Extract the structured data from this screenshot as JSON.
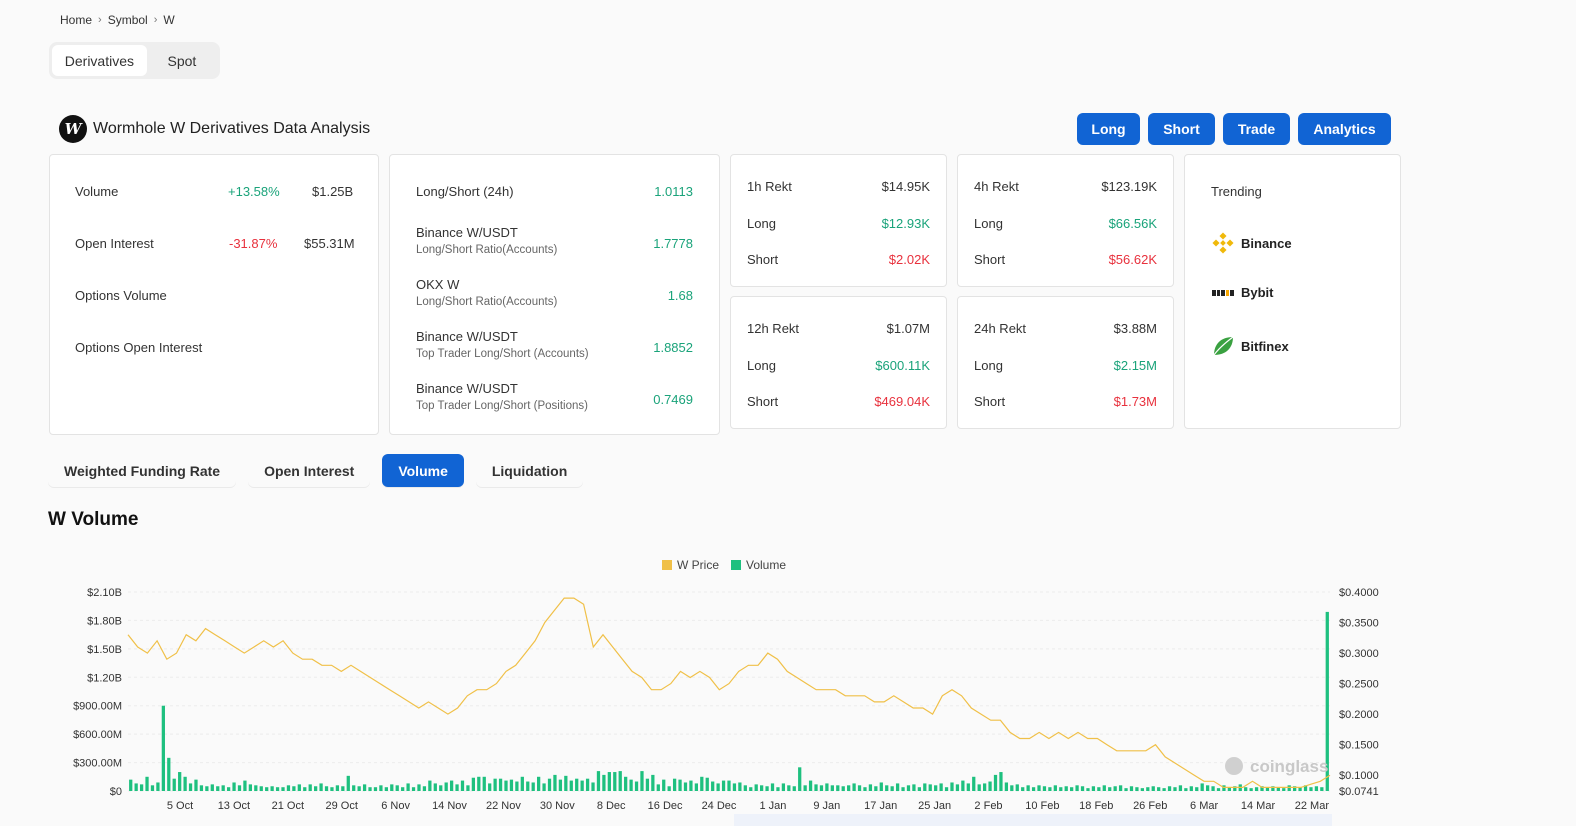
{
  "breadcrumb": [
    "Home",
    "Symbol",
    "W"
  ],
  "market_toggle": {
    "options": [
      "Derivatives",
      "Spot"
    ],
    "active": "Derivatives"
  },
  "header": {
    "logo_letter": "W",
    "title": "Wormhole W Derivatives Data Analysis"
  },
  "actions": [
    "Long",
    "Short",
    "Trade",
    "Analytics"
  ],
  "stats": {
    "volume": {
      "label": "Volume",
      "change": "+13.58%",
      "value": "$1.25B"
    },
    "open_interest": {
      "label": "Open Interest",
      "change": "-31.87%",
      "value": "$55.31M"
    },
    "options_volume": {
      "label": "Options Volume"
    },
    "options_open_interest": {
      "label": "Options Open Interest"
    }
  },
  "ratios": {
    "ls24": {
      "label": "Long/Short (24h)",
      "value": "1.0113"
    },
    "binance_accounts": {
      "label": "Binance W/USDT",
      "sub": "Long/Short Ratio(Accounts)",
      "value": "1.7778"
    },
    "okx_accounts": {
      "label": "OKX W",
      "sub": "Long/Short Ratio(Accounts)",
      "value": "1.68"
    },
    "binance_top_accounts": {
      "label": "Binance W/USDT",
      "sub": "Top Trader Long/Short (Accounts)",
      "value": "1.8852"
    },
    "binance_top_positions": {
      "label": "Binance W/USDT",
      "sub": "Top Trader Long/Short (Positions)",
      "value": "0.7469"
    }
  },
  "rekt": {
    "h1": {
      "label": "1h Rekt",
      "total": "$14.95K",
      "long_label": "Long",
      "long": "$12.93K",
      "short_label": "Short",
      "short": "$2.02K"
    },
    "h4": {
      "label": "4h Rekt",
      "total": "$123.19K",
      "long_label": "Long",
      "long": "$66.56K",
      "short_label": "Short",
      "short": "$56.62K"
    },
    "h12": {
      "label": "12h Rekt",
      "total": "$1.07M",
      "long_label": "Long",
      "long": "$600.11K",
      "short_label": "Short",
      "short": "$469.04K"
    },
    "h24": {
      "label": "24h Rekt",
      "total": "$3.88M",
      "long_label": "Long",
      "long": "$2.15M",
      "short_label": "Short",
      "short": "$1.73M"
    }
  },
  "trending": {
    "title": "Trending",
    "items": [
      "Binance",
      "Bybit",
      "Bitfinex"
    ]
  },
  "chart_tabs": {
    "items": [
      "Weighted Funding Rate",
      "Open Interest",
      "Volume",
      "Liquidation"
    ],
    "active": "Volume"
  },
  "section_title": "W Volume",
  "watermark": "coinglass",
  "chart_data": {
    "type": "bar",
    "legend": [
      "W Price",
      "Volume"
    ],
    "legend_placement": "top-center",
    "colors": {
      "price": "#f0c048",
      "volume": "#1ec07f"
    },
    "y_left_ticks": [
      "$0",
      "$300.00M",
      "$600.00M",
      "$900.00M",
      "$1.20B",
      "$1.50B",
      "$1.80B",
      "$2.10B"
    ],
    "y_left_range": [
      0,
      2100000000
    ],
    "y_right_ticks": [
      "$0.0741",
      "$0.1000",
      "$0.1500",
      "$0.2000",
      "$0.2500",
      "$0.3000",
      "$0.3500",
      "$0.4000"
    ],
    "y_right_range": [
      0.0741,
      0.4
    ],
    "x_ticks": [
      "5 Oct",
      "13 Oct",
      "21 Oct",
      "29 Oct",
      "6 Nov",
      "14 Nov",
      "22 Nov",
      "30 Nov",
      "8 Dec",
      "16 Dec",
      "24 Dec",
      "1 Jan",
      "9 Jan",
      "17 Jan",
      "25 Jan",
      "2 Feb",
      "10 Feb",
      "18 Feb",
      "26 Feb",
      "6 Mar",
      "14 Mar",
      "22 Mar"
    ],
    "grid": true,
    "series": [
      {
        "name": "Volume",
        "unit": "USD (millions)",
        "values": [
          120,
          80,
          70,
          150,
          60,
          90,
          900,
          350,
          130,
          200,
          150,
          80,
          120,
          60,
          50,
          70,
          50,
          60,
          40,
          90,
          60,
          110,
          70,
          60,
          50,
          40,
          50,
          40,
          40,
          60,
          50,
          70,
          40,
          70,
          50,
          80,
          50,
          40,
          60,
          50,
          160,
          60,
          50,
          70,
          40,
          40,
          60,
          40,
          70,
          60,
          40,
          80,
          40,
          70,
          50,
          110,
          80,
          60,
          90,
          110,
          70,
          110,
          60,
          140,
          150,
          150,
          80,
          130,
          130,
          110,
          120,
          100,
          150,
          100,
          90,
          150,
          80,
          130,
          170,
          120,
          160,
          110,
          130,
          110,
          130,
          90,
          210,
          170,
          200,
          200,
          210,
          150,
          120,
          100,
          210,
          130,
          170,
          70,
          120,
          50,
          130,
          120,
          90,
          110,
          80,
          150,
          140,
          100,
          80,
          110,
          110,
          80,
          90,
          60,
          40,
          70,
          60,
          50,
          80,
          40,
          80,
          60,
          50,
          250,
          60,
          110,
          70,
          60,
          80,
          60,
          60,
          50,
          60,
          80,
          60,
          40,
          70,
          50,
          90,
          60,
          50,
          80,
          40,
          60,
          70,
          40,
          80,
          70,
          60,
          80,
          40,
          90,
          70,
          110,
          80,
          150,
          70,
          80,
          100,
          170,
          200,
          90,
          60,
          70,
          40,
          60,
          40,
          60,
          50,
          40,
          60,
          40,
          50,
          40,
          60,
          50,
          30,
          50,
          40,
          60,
          40,
          50,
          60,
          30,
          50,
          40,
          30,
          40,
          50,
          40,
          30,
          50,
          40,
          60,
          30,
          50,
          40,
          80,
          60,
          50,
          30,
          60,
          40,
          50,
          70,
          40,
          30,
          40,
          50,
          40,
          50,
          40,
          30,
          60,
          50,
          40,
          60,
          40,
          50,
          40,
          1890
        ]
      },
      {
        "name": "W Price",
        "unit": "USD",
        "values": [
          0.33,
          0.31,
          0.3,
          0.32,
          0.29,
          0.3,
          0.33,
          0.32,
          0.34,
          0.33,
          0.32,
          0.31,
          0.3,
          0.31,
          0.32,
          0.31,
          0.32,
          0.3,
          0.29,
          0.29,
          0.28,
          0.28,
          0.27,
          0.28,
          0.27,
          0.26,
          0.25,
          0.24,
          0.23,
          0.22,
          0.21,
          0.22,
          0.21,
          0.2,
          0.21,
          0.23,
          0.24,
          0.24,
          0.25,
          0.27,
          0.28,
          0.3,
          0.32,
          0.35,
          0.37,
          0.39,
          0.39,
          0.38,
          0.31,
          0.33,
          0.31,
          0.29,
          0.27,
          0.26,
          0.24,
          0.24,
          0.25,
          0.27,
          0.26,
          0.27,
          0.26,
          0.24,
          0.25,
          0.27,
          0.28,
          0.28,
          0.3,
          0.29,
          0.27,
          0.26,
          0.25,
          0.24,
          0.24,
          0.24,
          0.23,
          0.23,
          0.23,
          0.22,
          0.22,
          0.23,
          0.22,
          0.21,
          0.21,
          0.2,
          0.23,
          0.24,
          0.23,
          0.21,
          0.2,
          0.19,
          0.19,
          0.17,
          0.16,
          0.16,
          0.17,
          0.16,
          0.17,
          0.16,
          0.17,
          0.16,
          0.16,
          0.15,
          0.14,
          0.14,
          0.14,
          0.14,
          0.15,
          0.13,
          0.12,
          0.11,
          0.1,
          0.09,
          0.09,
          0.08,
          0.08,
          0.08,
          0.09,
          0.08,
          0.08,
          0.08,
          0.08,
          0.08,
          0.085,
          0.09,
          0.1
        ]
      }
    ]
  }
}
